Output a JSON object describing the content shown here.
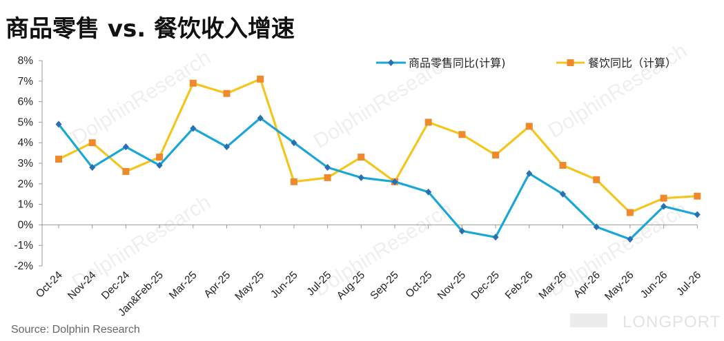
{
  "title": "商品零售 vs. 餐饮收入增速",
  "source": "Source: Dolphin Research",
  "watermark": {
    "text": "DolphinResearch",
    "brand": "LONGPORT"
  },
  "colors": {
    "retail": "#1aa7d8",
    "catering": "#f5c51b",
    "catering_marker": "#ee8a2d",
    "retail_marker": "#2a6fb0",
    "axis": "#999999"
  },
  "chart_data": {
    "type": "line",
    "title": "商品零售 vs. 餐饮收入增速",
    "categories": [
      "Oct-24",
      "Nov-24",
      "Dec-24",
      "Jan&Feb-25",
      "Mar-25",
      "Apr-25",
      "May-25",
      "Jun-25",
      "Jul-25",
      "Aug-25",
      "Sep-25",
      "Oct-25",
      "Nov-25",
      "Dec-25",
      "Feb-26",
      "Mar-26",
      "Apr-26",
      "May-26",
      "Jun-26",
      "Jul-26"
    ],
    "y_ticks": [
      "8%",
      "7%",
      "6%",
      "5%",
      "4%",
      "3%",
      "2%",
      "1%",
      "0%",
      "-1%",
      "-2%"
    ],
    "ylim": [
      -2,
      8
    ],
    "y_unit": "%",
    "grid": false,
    "legend_position": "top-right",
    "series": [
      {
        "name": "商品零售同比(计算)",
        "marker": "diamond",
        "values": [
          4.9,
          2.8,
          3.8,
          2.9,
          4.7,
          3.8,
          5.2,
          4.0,
          2.8,
          2.3,
          2.1,
          1.6,
          -0.3,
          -0.6,
          2.5,
          1.5,
          -0.1,
          -0.7,
          0.9,
          0.5
        ]
      },
      {
        "name": "餐饮同比（计算）",
        "marker": "square",
        "values": [
          3.2,
          4.0,
          2.6,
          3.3,
          6.9,
          6.4,
          7.1,
          2.1,
          2.3,
          3.3,
          2.1,
          5.0,
          4.4,
          3.4,
          4.8,
          2.9,
          2.2,
          0.6,
          1.3,
          1.4
        ]
      }
    ]
  }
}
